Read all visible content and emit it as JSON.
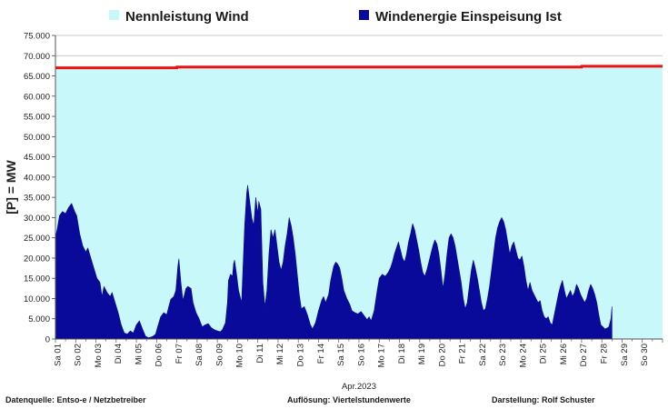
{
  "legend": {
    "capacity_label": "Nennleistung Wind",
    "feed_label": "Windenergie Einspeisung Ist"
  },
  "colors": {
    "capacity_fill": "#c8f8fa",
    "capacity_line": "#ee1111",
    "feed_fill": "#0a0a9a",
    "grid": "#b8b8b8"
  },
  "footer": {
    "source": "Datenquelle:  Entso-e  / Netzbetreiber",
    "resolution": "Auflösung: Viertelstundenwerte",
    "author": "Darstellung:  Rolf Schuster"
  },
  "chart_data": {
    "type": "area",
    "ylabel": "[P] = MW",
    "xlabel": "Apr.2023",
    "ylim": [
      0,
      75000
    ],
    "yticks": [
      "0",
      "5.000",
      "10.000",
      "15.000",
      "20.000",
      "25.000",
      "30.000",
      "35.000",
      "40.000",
      "45.000",
      "50.000",
      "55.000",
      "60.000",
      "65.000",
      "70.000",
      "75.000"
    ],
    "xlim": [
      1,
      31
    ],
    "xticks": [
      {
        "x": 1,
        "label": "Sa 01"
      },
      {
        "x": 2,
        "label": "So 02"
      },
      {
        "x": 3,
        "label": "Mo 03"
      },
      {
        "x": 4,
        "label": "Di 04"
      },
      {
        "x": 5,
        "label": "Mi 05"
      },
      {
        "x": 6,
        "label": "Do 06"
      },
      {
        "x": 7,
        "label": "Fr 07"
      },
      {
        "x": 8,
        "label": "Sa 08"
      },
      {
        "x": 9,
        "label": "So 09"
      },
      {
        "x": 10,
        "label": "Mo 10"
      },
      {
        "x": 11,
        "label": "Di 11"
      },
      {
        "x": 12,
        "label": "Mi 12"
      },
      {
        "x": 13,
        "label": "Do 13"
      },
      {
        "x": 14,
        "label": "Fr 14"
      },
      {
        "x": 15,
        "label": "Sa 15"
      },
      {
        "x": 16,
        "label": "So 16"
      },
      {
        "x": 17,
        "label": "Mo 17"
      },
      {
        "x": 18,
        "label": "Di 18"
      },
      {
        "x": 19,
        "label": "Mi 19"
      },
      {
        "x": 20,
        "label": "Do 20"
      },
      {
        "x": 21,
        "label": "Fr 21"
      },
      {
        "x": 22,
        "label": "Sa 22"
      },
      {
        "x": 23,
        "label": "So 23"
      },
      {
        "x": 24,
        "label": "Mo 24"
      },
      {
        "x": 25,
        "label": "Di 25"
      },
      {
        "x": 26,
        "label": "Mi 26"
      },
      {
        "x": 27,
        "label": "Do 27"
      },
      {
        "x": 28,
        "label": "Fr 28"
      },
      {
        "x": 29,
        "label": "Sa 29"
      },
      {
        "x": 30,
        "label": "So 30"
      }
    ],
    "series": [
      {
        "name": "Nennleistung Wind",
        "style": "filled-area-with-line",
        "points": [
          [
            1,
            67000
          ],
          [
            7,
            67000
          ],
          [
            7.01,
            67200
          ],
          [
            27,
            67200
          ],
          [
            27.01,
            67400
          ],
          [
            31,
            67400
          ]
        ]
      },
      {
        "name": "Windenergie Einspeisung Ist",
        "style": "filled-area",
        "points": [
          [
            1.0,
            25000
          ],
          [
            1.1,
            27500
          ],
          [
            1.2,
            30500
          ],
          [
            1.35,
            31500
          ],
          [
            1.5,
            31000
          ],
          [
            1.65,
            32500
          ],
          [
            1.8,
            33500
          ],
          [
            1.95,
            31500
          ],
          [
            2.05,
            30500
          ],
          [
            2.2,
            26000
          ],
          [
            2.35,
            23000
          ],
          [
            2.5,
            21500
          ],
          [
            2.6,
            22500
          ],
          [
            2.75,
            20000
          ],
          [
            2.9,
            17500
          ],
          [
            3.05,
            15000
          ],
          [
            3.2,
            14000
          ],
          [
            3.3,
            10500
          ],
          [
            3.4,
            13000
          ],
          [
            3.55,
            11500
          ],
          [
            3.7,
            10500
          ],
          [
            3.8,
            11500
          ],
          [
            3.95,
            9000
          ],
          [
            4.1,
            6500
          ],
          [
            4.25,
            3500
          ],
          [
            4.4,
            1500
          ],
          [
            4.55,
            1200
          ],
          [
            4.7,
            2000
          ],
          [
            4.85,
            1500
          ],
          [
            5.0,
            3500
          ],
          [
            5.15,
            4500
          ],
          [
            5.3,
            2500
          ],
          [
            5.45,
            700
          ],
          [
            5.6,
            300
          ],
          [
            5.8,
            600
          ],
          [
            5.95,
            1200
          ],
          [
            6.05,
            3000
          ],
          [
            6.2,
            5500
          ],
          [
            6.35,
            6500
          ],
          [
            6.5,
            6000
          ],
          [
            6.6,
            8000
          ],
          [
            6.7,
            9800
          ],
          [
            6.85,
            10500
          ],
          [
            6.95,
            12000
          ],
          [
            7.05,
            18000
          ],
          [
            7.1,
            19800
          ],
          [
            7.2,
            14000
          ],
          [
            7.3,
            9500
          ],
          [
            7.45,
            12500
          ],
          [
            7.55,
            13000
          ],
          [
            7.7,
            12500
          ],
          [
            7.8,
            9000
          ],
          [
            7.95,
            6500
          ],
          [
            8.1,
            5000
          ],
          [
            8.25,
            3000
          ],
          [
            8.4,
            3500
          ],
          [
            8.55,
            3800
          ],
          [
            8.7,
            2800
          ],
          [
            8.85,
            2300
          ],
          [
            9.0,
            2000
          ],
          [
            9.15,
            1800
          ],
          [
            9.25,
            2300
          ],
          [
            9.4,
            4000
          ],
          [
            9.5,
            9000
          ],
          [
            9.55,
            14500
          ],
          [
            9.65,
            16000
          ],
          [
            9.75,
            15500
          ],
          [
            9.8,
            18500
          ],
          [
            9.85,
            19500
          ],
          [
            9.95,
            16000
          ],
          [
            10.05,
            12000
          ],
          [
            10.2,
            9000
          ],
          [
            10.35,
            28000
          ],
          [
            10.45,
            36000
          ],
          [
            10.5,
            38000
          ],
          [
            10.6,
            34000
          ],
          [
            10.7,
            30000
          ],
          [
            10.8,
            28000
          ],
          [
            10.9,
            35000
          ],
          [
            11.0,
            31000
          ],
          [
            11.05,
            34000
          ],
          [
            11.15,
            32000
          ],
          [
            11.25,
            14000
          ],
          [
            11.35,
            8000
          ],
          [
            11.45,
            12000
          ],
          [
            11.55,
            21000
          ],
          [
            11.65,
            27000
          ],
          [
            11.75,
            25000
          ],
          [
            11.85,
            27000
          ],
          [
            11.95,
            23000
          ],
          [
            12.05,
            19000
          ],
          [
            12.15,
            17000
          ],
          [
            12.25,
            19000
          ],
          [
            12.35,
            23000
          ],
          [
            12.45,
            26000
          ],
          [
            12.55,
            30000
          ],
          [
            12.65,
            28000
          ],
          [
            12.75,
            25000
          ],
          [
            12.85,
            21000
          ],
          [
            12.95,
            16000
          ],
          [
            13.05,
            11000
          ],
          [
            13.15,
            7500
          ],
          [
            13.3,
            8000
          ],
          [
            13.45,
            6000
          ],
          [
            13.6,
            3500
          ],
          [
            13.7,
            2500
          ],
          [
            13.85,
            4000
          ],
          [
            14.0,
            7000
          ],
          [
            14.15,
            9500
          ],
          [
            14.25,
            10500
          ],
          [
            14.35,
            9000
          ],
          [
            14.5,
            11000
          ],
          [
            14.6,
            14500
          ],
          [
            14.75,
            18000
          ],
          [
            14.85,
            19000
          ],
          [
            14.95,
            18500
          ],
          [
            15.05,
            17500
          ],
          [
            15.15,
            15000
          ],
          [
            15.25,
            12000
          ],
          [
            15.4,
            10000
          ],
          [
            15.55,
            8500
          ],
          [
            15.65,
            7000
          ],
          [
            15.8,
            6500
          ],
          [
            15.95,
            6200
          ],
          [
            16.1,
            6800
          ],
          [
            16.25,
            5800
          ],
          [
            16.4,
            4800
          ],
          [
            16.5,
            5500
          ],
          [
            16.6,
            4500
          ],
          [
            16.75,
            7000
          ],
          [
            16.9,
            12000
          ],
          [
            17.0,
            15000
          ],
          [
            17.15,
            16000
          ],
          [
            17.3,
            15500
          ],
          [
            17.45,
            16500
          ],
          [
            17.55,
            17500
          ],
          [
            17.65,
            19000
          ],
          [
            17.75,
            21000
          ],
          [
            17.85,
            22500
          ],
          [
            17.95,
            24000
          ],
          [
            18.05,
            22000
          ],
          [
            18.15,
            20000
          ],
          [
            18.25,
            19000
          ],
          [
            18.35,
            21000
          ],
          [
            18.45,
            24000
          ],
          [
            18.55,
            26000
          ],
          [
            18.65,
            28500
          ],
          [
            18.75,
            27000
          ],
          [
            18.85,
            24500
          ],
          [
            18.95,
            22000
          ],
          [
            19.05,
            19000
          ],
          [
            19.15,
            16500
          ],
          [
            19.25,
            15500
          ],
          [
            19.35,
            17000
          ],
          [
            19.45,
            19000
          ],
          [
            19.55,
            21000
          ],
          [
            19.65,
            23000
          ],
          [
            19.75,
            24500
          ],
          [
            19.85,
            23500
          ],
          [
            19.95,
            21000
          ],
          [
            20.05,
            17000
          ],
          [
            20.15,
            12500
          ],
          [
            20.25,
            16000
          ],
          [
            20.35,
            21000
          ],
          [
            20.45,
            25000
          ],
          [
            20.55,
            26000
          ],
          [
            20.65,
            25000
          ],
          [
            20.75,
            23000
          ],
          [
            20.85,
            20000
          ],
          [
            20.95,
            17000
          ],
          [
            21.05,
            14000
          ],
          [
            21.15,
            10000
          ],
          [
            21.25,
            7500
          ],
          [
            21.35,
            9000
          ],
          [
            21.45,
            13000
          ],
          [
            21.55,
            17000
          ],
          [
            21.65,
            19500
          ],
          [
            21.75,
            17500
          ],
          [
            21.85,
            15000
          ],
          [
            21.95,
            12000
          ],
          [
            22.05,
            9000
          ],
          [
            22.15,
            7000
          ],
          [
            22.25,
            7500
          ],
          [
            22.35,
            10000
          ],
          [
            22.45,
            13000
          ],
          [
            22.55,
            17000
          ],
          [
            22.65,
            21000
          ],
          [
            22.75,
            25000
          ],
          [
            22.85,
            27500
          ],
          [
            22.95,
            29000
          ],
          [
            23.05,
            30000
          ],
          [
            23.15,
            29000
          ],
          [
            23.25,
            27000
          ],
          [
            23.35,
            24000
          ],
          [
            23.45,
            21000
          ],
          [
            23.55,
            23000
          ],
          [
            23.65,
            24000
          ],
          [
            23.75,
            22000
          ],
          [
            23.85,
            20000
          ],
          [
            23.95,
            19500
          ],
          [
            24.05,
            20500
          ],
          [
            24.15,
            18000
          ],
          [
            24.25,
            14500
          ],
          [
            24.35,
            12000
          ],
          [
            24.45,
            14000
          ],
          [
            24.55,
            12000
          ],
          [
            24.65,
            11000
          ],
          [
            24.75,
            10000
          ],
          [
            24.85,
            9000
          ],
          [
            24.95,
            9500
          ],
          [
            25.05,
            7000
          ],
          [
            25.15,
            5500
          ],
          [
            25.25,
            5000
          ],
          [
            25.35,
            5500
          ],
          [
            25.45,
            4000
          ],
          [
            25.55,
            3500
          ],
          [
            25.65,
            6000
          ],
          [
            25.75,
            8500
          ],
          [
            25.85,
            11000
          ],
          [
            25.95,
            13000
          ],
          [
            26.05,
            14500
          ],
          [
            26.15,
            12000
          ],
          [
            26.25,
            10000
          ],
          [
            26.35,
            11000
          ],
          [
            26.45,
            12000
          ],
          [
            26.55,
            10500
          ],
          [
            26.65,
            11500
          ],
          [
            26.75,
            13500
          ],
          [
            26.85,
            12500
          ],
          [
            26.95,
            11000
          ],
          [
            27.05,
            10000
          ],
          [
            27.15,
            9000
          ],
          [
            27.25,
            10000
          ],
          [
            27.35,
            12000
          ],
          [
            27.45,
            13500
          ],
          [
            27.55,
            12500
          ],
          [
            27.65,
            11000
          ],
          [
            27.75,
            9000
          ],
          [
            27.85,
            6000
          ],
          [
            27.95,
            3500
          ],
          [
            28.05,
            3000
          ],
          [
            28.15,
            2500
          ],
          [
            28.25,
            2700
          ],
          [
            28.35,
            3000
          ],
          [
            28.45,
            5000
          ],
          [
            28.5,
            8000
          ]
        ]
      }
    ]
  }
}
